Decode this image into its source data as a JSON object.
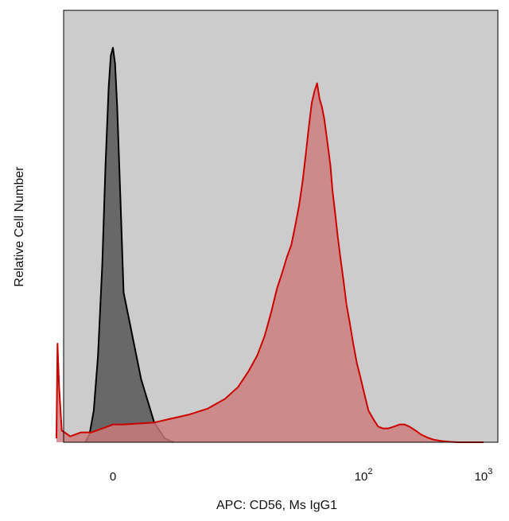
{
  "chart_data": {
    "type": "area",
    "title": "",
    "xlabel": "APC: CD56, Ms IgG1",
    "ylabel": "Relative Cell Number",
    "x_scale": "biexponential",
    "x_ticks": [
      {
        "value": 0,
        "base": "0",
        "exp": ""
      },
      {
        "value": 100,
        "base": "10",
        "exp": "2"
      },
      {
        "value": 1000,
        "base": "10",
        "exp": "3"
      }
    ],
    "ylim": [
      0,
      100
    ],
    "grid": false,
    "legend": "none",
    "background_color": "#cccccc",
    "series": [
      {
        "role": "isotype-control",
        "fill_color": "#686868",
        "line_color": "#000000",
        "points": [
          [
            -2.6,
            0
          ],
          [
            -2.2,
            2
          ],
          [
            -1.8,
            8
          ],
          [
            -1.4,
            22
          ],
          [
            -1.0,
            45
          ],
          [
            -0.7,
            70
          ],
          [
            -0.4,
            90
          ],
          [
            -0.2,
            98
          ],
          [
            0.0,
            100
          ],
          [
            0.2,
            96
          ],
          [
            0.4,
            85
          ],
          [
            0.7,
            62
          ],
          [
            1.0,
            38
          ],
          [
            1.4,
            16
          ],
          [
            1.8,
            5
          ],
          [
            2.2,
            1
          ],
          [
            2.6,
            0
          ]
        ]
      },
      {
        "role": "cd56-stained",
        "fill_color": "#cd7b7b",
        "line_color": "#cc0000",
        "points": [
          [
            -5.3,
            1
          ],
          [
            -5.2,
            25
          ],
          [
            -5.05,
            14
          ],
          [
            -4.8,
            3
          ],
          [
            -4.0,
            1.5
          ],
          [
            -3.0,
            2.5
          ],
          [
            -2.0,
            2.5
          ],
          [
            -1.0,
            3.5
          ],
          [
            0.0,
            4.5
          ],
          [
            1.0,
            4.5
          ],
          [
            1.8,
            5
          ],
          [
            2.5,
            6
          ],
          [
            3.5,
            7
          ],
          [
            5,
            8.5
          ],
          [
            7,
            11
          ],
          [
            9,
            14
          ],
          [
            11,
            18
          ],
          [
            13,
            22
          ],
          [
            15,
            27
          ],
          [
            17,
            33
          ],
          [
            19,
            39
          ],
          [
            21,
            43
          ],
          [
            23,
            47
          ],
          [
            25,
            50
          ],
          [
            27,
            55
          ],
          [
            29,
            60
          ],
          [
            31,
            66
          ],
          [
            33,
            73
          ],
          [
            35,
            80
          ],
          [
            37,
            86
          ],
          [
            39,
            89
          ],
          [
            41,
            91
          ],
          [
            43,
            87
          ],
          [
            45,
            85
          ],
          [
            47,
            82
          ],
          [
            49,
            78
          ],
          [
            51,
            74
          ],
          [
            53,
            70
          ],
          [
            55,
            64
          ],
          [
            58,
            58
          ],
          [
            61,
            52
          ],
          [
            64,
            47
          ],
          [
            68,
            41
          ],
          [
            72,
            35
          ],
          [
            77,
            30
          ],
          [
            82,
            25
          ],
          [
            88,
            20
          ],
          [
            95,
            16
          ],
          [
            102,
            12
          ],
          [
            110,
            8
          ],
          [
            120,
            6
          ],
          [
            132,
            4
          ],
          [
            145,
            3.5
          ],
          [
            160,
            3.5
          ],
          [
            180,
            4
          ],
          [
            200,
            4.5
          ],
          [
            220,
            4.5
          ],
          [
            240,
            4
          ],
          [
            270,
            3
          ],
          [
            300,
            2
          ],
          [
            340,
            1.2
          ],
          [
            390,
            0.6
          ],
          [
            450,
            0.3
          ],
          [
            530,
            0.1
          ],
          [
            620,
            0
          ],
          [
            800,
            0
          ],
          [
            1000,
            0
          ]
        ]
      }
    ]
  }
}
